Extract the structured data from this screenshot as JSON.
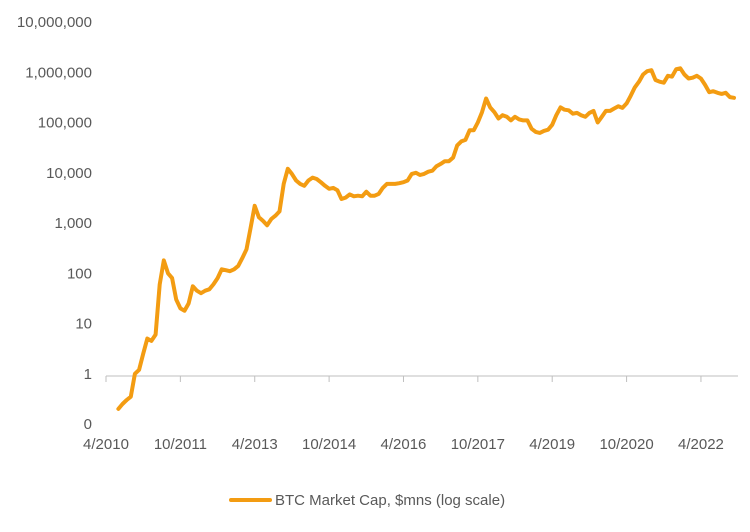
{
  "chart_data": {
    "type": "line",
    "title": "",
    "xlabel": "",
    "ylabel": "",
    "y_scale": "log",
    "grid": false,
    "legend_position": "bottom-center",
    "colors": {
      "series": "#F39C12",
      "axis_text": "#595959",
      "axis_line": "#bfbfbf"
    },
    "y_ticks": [
      {
        "value": 0.1,
        "label": "0"
      },
      {
        "value": 1,
        "label": "1"
      },
      {
        "value": 10,
        "label": "10"
      },
      {
        "value": 100,
        "label": "100"
      },
      {
        "value": 1000,
        "label": "1,000"
      },
      {
        "value": 10000,
        "label": "10,000"
      },
      {
        "value": 100000,
        "label": "100,000"
      },
      {
        "value": 1000000,
        "label": "1,000,000"
      },
      {
        "value": 10000000,
        "label": "10,000,000"
      }
    ],
    "ylim": [
      0.1,
      10000000
    ],
    "x_range": [
      "2010-04",
      "2022-12"
    ],
    "x_ticks": [
      "4/2010",
      "10/2011",
      "4/2013",
      "10/2014",
      "4/2016",
      "10/2017",
      "4/2019",
      "10/2020",
      "4/2022"
    ],
    "series": [
      {
        "name": "BTC Market Cap, $mns (log scale)",
        "points": [
          [
            "2010-07",
            0.2
          ],
          [
            "2010-08",
            0.25
          ],
          [
            "2010-09",
            0.3
          ],
          [
            "2010-10",
            0.35
          ],
          [
            "2010-11",
            1.0
          ],
          [
            "2010-12",
            1.2
          ],
          [
            "2011-01",
            2.5
          ],
          [
            "2011-02",
            5
          ],
          [
            "2011-03",
            4.5
          ],
          [
            "2011-04",
            6
          ],
          [
            "2011-05",
            60
          ],
          [
            "2011-06",
            180
          ],
          [
            "2011-07",
            100
          ],
          [
            "2011-08",
            80
          ],
          [
            "2011-09",
            30
          ],
          [
            "2011-10",
            20
          ],
          [
            "2011-11",
            18
          ],
          [
            "2011-12",
            25
          ],
          [
            "2012-01",
            55
          ],
          [
            "2012-02",
            45
          ],
          [
            "2012-03",
            40
          ],
          [
            "2012-04",
            45
          ],
          [
            "2012-05",
            48
          ],
          [
            "2012-06",
            60
          ],
          [
            "2012-07",
            80
          ],
          [
            "2012-08",
            120
          ],
          [
            "2012-09",
            115
          ],
          [
            "2012-10",
            110
          ],
          [
            "2012-11",
            120
          ],
          [
            "2012-12",
            140
          ],
          [
            "2013-01",
            200
          ],
          [
            "2013-02",
            300
          ],
          [
            "2013-03",
            800
          ],
          [
            "2013-04",
            2200
          ],
          [
            "2013-05",
            1300
          ],
          [
            "2013-06",
            1100
          ],
          [
            "2013-07",
            900
          ],
          [
            "2013-08",
            1200
          ],
          [
            "2013-09",
            1400
          ],
          [
            "2013-10",
            1700
          ],
          [
            "2013-11",
            6000
          ],
          [
            "2013-12",
            12000
          ],
          [
            "2014-01",
            9500
          ],
          [
            "2014-02",
            7000
          ],
          [
            "2014-03",
            6000
          ],
          [
            "2014-04",
            5500
          ],
          [
            "2014-05",
            7000
          ],
          [
            "2014-06",
            8000
          ],
          [
            "2014-07",
            7500
          ],
          [
            "2014-08",
            6500
          ],
          [
            "2014-09",
            5500
          ],
          [
            "2014-10",
            4800
          ],
          [
            "2014-11",
            5000
          ],
          [
            "2014-12",
            4500
          ],
          [
            "2015-01",
            3000
          ],
          [
            "2015-02",
            3200
          ],
          [
            "2015-03",
            3700
          ],
          [
            "2015-04",
            3400
          ],
          [
            "2015-05",
            3500
          ],
          [
            "2015-06",
            3400
          ],
          [
            "2015-07",
            4200
          ],
          [
            "2015-08",
            3500
          ],
          [
            "2015-09",
            3500
          ],
          [
            "2015-10",
            3800
          ],
          [
            "2015-11",
            5000
          ],
          [
            "2015-12",
            6000
          ],
          [
            "2016-01",
            6000
          ],
          [
            "2016-02",
            6000
          ],
          [
            "2016-03",
            6200
          ],
          [
            "2016-04",
            6500
          ],
          [
            "2016-05",
            7000
          ],
          [
            "2016-06",
            9500
          ],
          [
            "2016-07",
            10000
          ],
          [
            "2016-08",
            9000
          ],
          [
            "2016-09",
            9500
          ],
          [
            "2016-10",
            10500
          ],
          [
            "2016-11",
            11000
          ],
          [
            "2016-12",
            13500
          ],
          [
            "2017-01",
            15000
          ],
          [
            "2017-02",
            17000
          ],
          [
            "2017-03",
            17000
          ],
          [
            "2017-04",
            20000
          ],
          [
            "2017-05",
            35000
          ],
          [
            "2017-06",
            42000
          ],
          [
            "2017-07",
            45000
          ],
          [
            "2017-08",
            70000
          ],
          [
            "2017-09",
            70000
          ],
          [
            "2017-10",
            100000
          ],
          [
            "2017-11",
            160000
          ],
          [
            "2017-12",
            300000
          ],
          [
            "2018-01",
            200000
          ],
          [
            "2018-02",
            160000
          ],
          [
            "2018-03",
            120000
          ],
          [
            "2018-04",
            140000
          ],
          [
            "2018-05",
            130000
          ],
          [
            "2018-06",
            110000
          ],
          [
            "2018-07",
            130000
          ],
          [
            "2018-08",
            115000
          ],
          [
            "2018-09",
            110000
          ],
          [
            "2018-10",
            110000
          ],
          [
            "2018-11",
            75000
          ],
          [
            "2018-12",
            65000
          ],
          [
            "2019-01",
            62000
          ],
          [
            "2019-02",
            68000
          ],
          [
            "2019-03",
            72000
          ],
          [
            "2019-04",
            90000
          ],
          [
            "2019-05",
            140000
          ],
          [
            "2019-06",
            200000
          ],
          [
            "2019-07",
            180000
          ],
          [
            "2019-08",
            175000
          ],
          [
            "2019-09",
            150000
          ],
          [
            "2019-10",
            155000
          ],
          [
            "2019-11",
            140000
          ],
          [
            "2019-12",
            130000
          ],
          [
            "2020-01",
            155000
          ],
          [
            "2020-02",
            170000
          ],
          [
            "2020-03",
            100000
          ],
          [
            "2020-04",
            130000
          ],
          [
            "2020-05",
            170000
          ],
          [
            "2020-06",
            170000
          ],
          [
            "2020-07",
            190000
          ],
          [
            "2020-08",
            210000
          ],
          [
            "2020-09",
            195000
          ],
          [
            "2020-10",
            240000
          ],
          [
            "2020-11",
            340000
          ],
          [
            "2020-12",
            500000
          ],
          [
            "2021-01",
            650000
          ],
          [
            "2021-02",
            900000
          ],
          [
            "2021-03",
            1050000
          ],
          [
            "2021-04",
            1100000
          ],
          [
            "2021-05",
            700000
          ],
          [
            "2021-06",
            650000
          ],
          [
            "2021-07",
            620000
          ],
          [
            "2021-08",
            850000
          ],
          [
            "2021-09",
            820000
          ],
          [
            "2021-10",
            1150000
          ],
          [
            "2021-11",
            1200000
          ],
          [
            "2021-12",
            900000
          ],
          [
            "2022-01",
            750000
          ],
          [
            "2022-02",
            780000
          ],
          [
            "2022-03",
            850000
          ],
          [
            "2022-04",
            750000
          ],
          [
            "2022-05",
            560000
          ],
          [
            "2022-06",
            400000
          ],
          [
            "2022-07",
            420000
          ],
          [
            "2022-08",
            390000
          ],
          [
            "2022-09",
            370000
          ],
          [
            "2022-10",
            390000
          ],
          [
            "2022-11",
            320000
          ],
          [
            "2022-12",
            310000
          ]
        ]
      }
    ]
  }
}
